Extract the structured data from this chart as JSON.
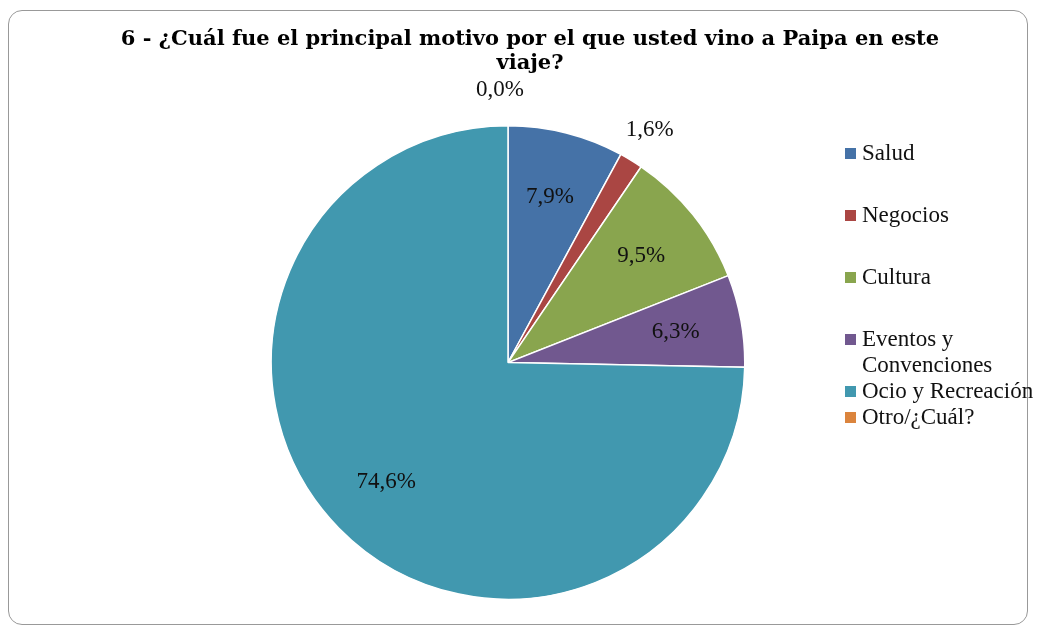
{
  "chart_data": {
    "type": "pie",
    "title": "6 - ¿Cuál fue el principal motivo por el que usted vino a Paipa en este viaje?",
    "categories": [
      "Salud",
      "Negocios",
      "Cultura",
      "Eventos y Convenciones",
      "Ocio y Recreación",
      "Otro/¿Cuál?"
    ],
    "values": [
      7.9,
      1.6,
      9.5,
      6.3,
      74.6,
      0.0
    ],
    "value_labels": [
      "7,9%",
      "1,6%",
      "9,5%",
      "6,3%",
      "74,6%",
      "0,0%"
    ],
    "colors": [
      "#4572a7",
      "#aa4643",
      "#89a54e",
      "#71588f",
      "#4198af",
      "#db843d"
    ],
    "legend": "right"
  }
}
